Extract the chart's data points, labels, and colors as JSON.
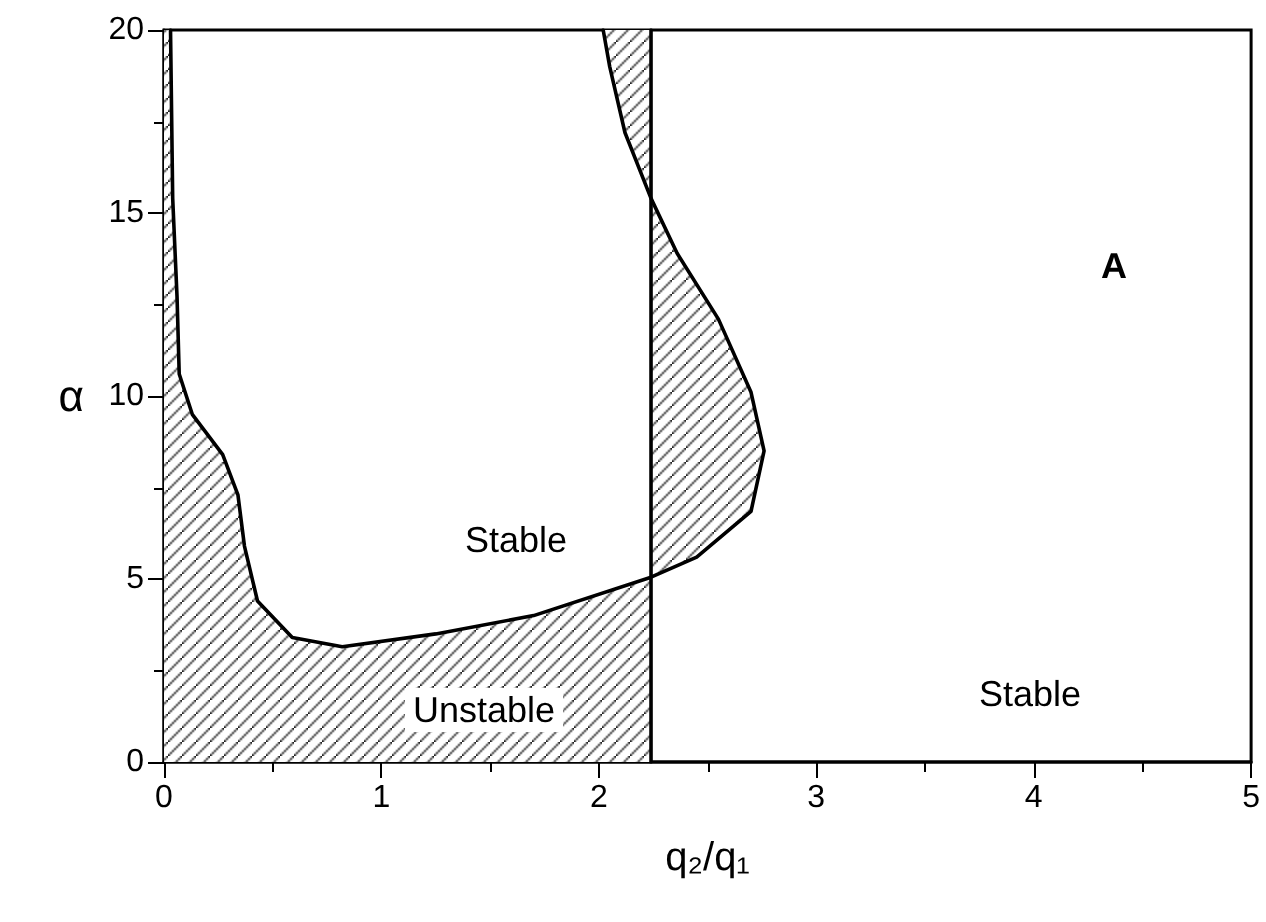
{
  "chart_data": {
    "type": "line",
    "xlabel": "q₂/q₁",
    "ylabel": "α",
    "xlim": [
      0,
      5
    ],
    "ylim": [
      0,
      20
    ],
    "xticks": [
      0,
      {
        "value": 0.5,
        "label": null
      },
      1,
      {
        "value": 1.5,
        "label": null
      },
      2,
      {
        "value": 2.5,
        "label": null
      },
      3,
      {
        "value": 3.5,
        "label": null
      },
      4,
      {
        "value": 4.5,
        "label": null
      },
      5
    ],
    "yticks": [
      0,
      {
        "value": 2.5,
        "label": null
      },
      5,
      {
        "value": 7.5,
        "label": null
      },
      10,
      {
        "value": 12.5,
        "label": null
      },
      15,
      {
        "value": 17.5,
        "label": null
      },
      20
    ],
    "series": [
      {
        "type": "area",
        "color": "#000000",
        "x": [
          0,
          0,
          0.03,
          0.04,
          0.06,
          0.07,
          0.13,
          0.27,
          0.34,
          0.37,
          0.43,
          0.59,
          0.82,
          1.25,
          1.7,
          2.24,
          2.24
        ],
        "values": [
          0,
          20,
          20,
          15.4,
          12.7,
          10.6,
          9.5,
          8.4,
          7.3,
          5.9,
          4.4,
          3.4,
          3.15,
          3.5,
          4.0,
          5.05,
          0
        ]
      },
      {
        "type": "area",
        "color": "#000000",
        "x": [
          2.24,
          2.45,
          2.7,
          2.76,
          2.7,
          2.55,
          2.36,
          2.24,
          2.12,
          2.05,
          2.02,
          2.24
        ],
        "values": [
          5.05,
          5.6,
          6.85,
          8.5,
          10.1,
          12.1,
          13.9,
          15.4,
          17.2,
          19.0,
          20,
          20
        ]
      },
      {
        "color": "#000000",
        "x": [
          0.03,
          0.04,
          0.06,
          0.07,
          0.13,
          0.27,
          0.34,
          0.37,
          0.43,
          0.59,
          0.82,
          1.25,
          1.7,
          2.24,
          2.45,
          2.7,
          2.76,
          2.7,
          2.55,
          2.36,
          2.24,
          2.12,
          2.05,
          2.02
        ],
        "values": [
          20,
          15.4,
          12.7,
          10.6,
          9.5,
          8.4,
          7.3,
          5.9,
          4.4,
          3.4,
          3.15,
          3.5,
          4.0,
          5.05,
          5.6,
          6.85,
          8.5,
          10.1,
          12.1,
          13.9,
          15.4,
          17.2,
          19.0,
          20
        ]
      },
      {
        "color": "#000000",
        "x": [
          2.24,
          2.24
        ],
        "values": [
          0,
          20
        ]
      }
    ],
    "annotations": [
      "Stable",
      "Unstable",
      "Stable",
      "A"
    ]
  }
}
